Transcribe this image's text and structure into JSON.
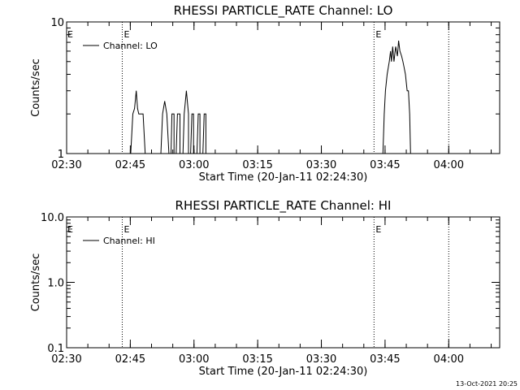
{
  "colors": {
    "background": "#ffffff",
    "foreground": "#000000"
  },
  "footer": {
    "timestamp": "13-Oct-2021 20:25"
  },
  "chart_data": [
    {
      "type": "line",
      "title": "RHESSI PARTICLE_RATE Channel: LO",
      "xlabel": "Start Time (20-Jan-11 02:24:30)",
      "ylabel": "Counts/sec",
      "yscale": "log",
      "ylim": [
        1,
        10
      ],
      "xlim": [
        5.5,
        107.5
      ],
      "x_units": "minutes after 02:24:30",
      "yticks": [
        {
          "value": 1,
          "label": "1"
        },
        {
          "value": 10,
          "label": "10"
        }
      ],
      "xticks": [
        {
          "value": 5.5,
          "label": "02:30"
        },
        {
          "value": 20.5,
          "label": "02:45"
        },
        {
          "value": 35.5,
          "label": "03:00"
        },
        {
          "value": 50.5,
          "label": "03:15"
        },
        {
          "value": 65.5,
          "label": "03:30"
        },
        {
          "value": 80.5,
          "label": "03:45"
        },
        {
          "value": 95.5,
          "label": "04:00"
        }
      ],
      "vlines": [
        {
          "x": 18.6,
          "label": "E"
        },
        {
          "x": 77.9,
          "label": "E"
        },
        {
          "x": 95.5,
          "label": ""
        }
      ],
      "legend": {
        "entries": [
          "Channel: LO"
        ],
        "position": "top-left"
      },
      "series": [
        {
          "name": "Channel: LO",
          "points": [
            [
              20.6,
              1
            ],
            [
              21.1,
              2
            ],
            [
              21.5,
              2.2
            ],
            [
              21.9,
              3
            ],
            [
              22.2,
              2.2
            ],
            [
              22.5,
              2
            ],
            [
              23.5,
              2
            ],
            [
              24.0,
              1
            ],
            [
              27.7,
              1
            ],
            [
              28.1,
              2
            ],
            [
              28.6,
              2.5
            ],
            [
              29.1,
              2
            ],
            [
              29.6,
              1
            ],
            [
              30.1,
              1
            ],
            [
              30.3,
              2
            ],
            [
              30.8,
              2
            ],
            [
              30.8,
              1
            ],
            [
              31.3,
              1
            ],
            [
              31.6,
              2
            ],
            [
              32.2,
              2
            ],
            [
              32.2,
              1
            ],
            [
              32.9,
              1
            ],
            [
              33.2,
              2
            ],
            [
              33.7,
              3
            ],
            [
              34.2,
              2
            ],
            [
              34.2,
              1
            ],
            [
              34.7,
              1
            ],
            [
              35.0,
              2
            ],
            [
              35.4,
              2
            ],
            [
              35.4,
              1
            ],
            [
              36.2,
              1
            ],
            [
              36.5,
              2
            ],
            [
              36.9,
              2
            ],
            [
              36.9,
              1
            ],
            [
              37.6,
              1
            ],
            [
              37.9,
              2
            ],
            [
              38.3,
              2
            ],
            [
              38.3,
              1
            ],
            [
              80.0,
              1
            ],
            [
              80.3,
              2
            ],
            [
              80.6,
              3
            ],
            [
              81.0,
              4
            ],
            [
              81.5,
              5
            ],
            [
              81.8,
              6
            ],
            [
              82.0,
              5
            ],
            [
              82.3,
              6.5
            ],
            [
              82.6,
              5
            ],
            [
              83.0,
              6.5
            ],
            [
              83.4,
              5.5
            ],
            [
              83.7,
              7.2
            ],
            [
              84.0,
              6
            ],
            [
              84.4,
              5.5
            ],
            [
              84.7,
              5
            ],
            [
              85.0,
              4.5
            ],
            [
              85.3,
              4
            ],
            [
              85.7,
              3
            ],
            [
              86.0,
              3
            ],
            [
              86.3,
              2
            ],
            [
              86.5,
              1
            ]
          ]
        }
      ]
    },
    {
      "type": "line",
      "title": "RHESSI PARTICLE_RATE Channel: HI",
      "xlabel": "Start Time (20-Jan-11 02:24:30)",
      "ylabel": "Counts/sec",
      "yscale": "log",
      "ylim": [
        0.1,
        10
      ],
      "xlim": [
        5.5,
        107.5
      ],
      "x_units": "minutes after 02:24:30",
      "yticks": [
        {
          "value": 0.1,
          "label": "0.1"
        },
        {
          "value": 1,
          "label": "1.0"
        },
        {
          "value": 10,
          "label": "10.0"
        }
      ],
      "xticks": [
        {
          "value": 5.5,
          "label": "02:30"
        },
        {
          "value": 20.5,
          "label": "02:45"
        },
        {
          "value": 35.5,
          "label": "03:00"
        },
        {
          "value": 50.5,
          "label": "03:15"
        },
        {
          "value": 65.5,
          "label": "03:30"
        },
        {
          "value": 80.5,
          "label": "03:45"
        },
        {
          "value": 95.5,
          "label": "04:00"
        }
      ],
      "vlines": [
        {
          "x": 18.6,
          "label": "E"
        },
        {
          "x": 77.9,
          "label": "E"
        },
        {
          "x": 95.5,
          "label": ""
        }
      ],
      "legend": {
        "entries": [
          "Channel: HI"
        ],
        "position": "top-left"
      },
      "series": [
        {
          "name": "Channel: HI",
          "points": []
        }
      ]
    }
  ]
}
